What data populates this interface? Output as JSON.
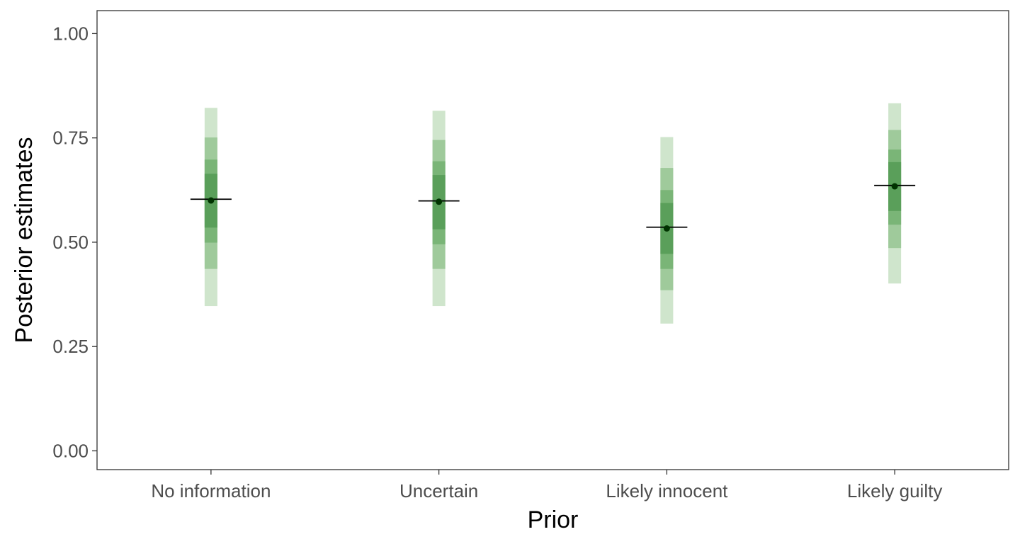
{
  "chart_data": {
    "type": "interval",
    "title": "",
    "xlabel": "Prior",
    "ylabel": "Posterior estimates",
    "ylim": [
      -0.045,
      1.055
    ],
    "yticks": [
      0.0,
      0.25,
      0.5,
      0.75,
      1.0
    ],
    "ytick_labels": [
      "0.00",
      "0.25",
      "0.50",
      "0.75",
      "1.00"
    ],
    "categories": [
      "No information",
      "Uncertain",
      "Likely innocent",
      "Likely guilty"
    ],
    "grid": false,
    "legend": "none",
    "colors": {
      "band_outer": "#cfe5cc",
      "band_2": "#9fca9b",
      "band_3": "#7ab577",
      "band_inner": "#5a9f5a",
      "point": "#003300",
      "median_line": "#000000"
    },
    "series": [
      {
        "category": "No information",
        "point": 0.6,
        "line": 0.603,
        "bands": [
          [
            0.347,
            0.822
          ],
          [
            0.436,
            0.751
          ],
          [
            0.499,
            0.698
          ],
          [
            0.535,
            0.664
          ]
        ]
      },
      {
        "category": "Uncertain",
        "point": 0.597,
        "line": 0.599,
        "bands": [
          [
            0.347,
            0.815
          ],
          [
            0.436,
            0.745
          ],
          [
            0.495,
            0.694
          ],
          [
            0.531,
            0.661
          ]
        ]
      },
      {
        "category": "Likely innocent",
        "point": 0.533,
        "line": 0.536,
        "bands": [
          [
            0.305,
            0.752
          ],
          [
            0.385,
            0.678
          ],
          [
            0.436,
            0.625
          ],
          [
            0.472,
            0.594
          ]
        ]
      },
      {
        "category": "Likely guilty",
        "point": 0.634,
        "line": 0.636,
        "bands": [
          [
            0.401,
            0.833
          ],
          [
            0.486,
            0.769
          ],
          [
            0.542,
            0.722
          ],
          [
            0.575,
            0.692
          ]
        ]
      }
    ]
  }
}
